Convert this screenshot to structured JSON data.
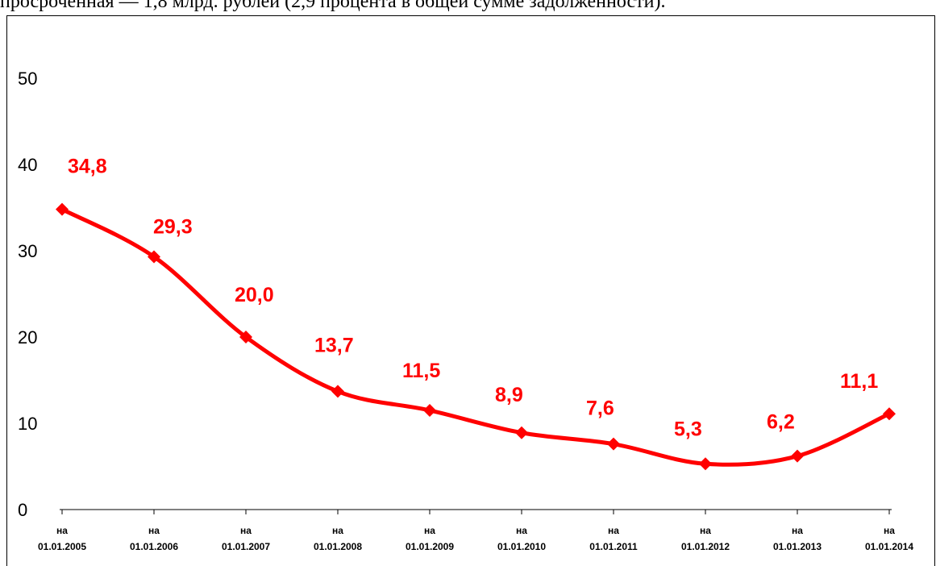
{
  "header_text": "просроченная — 1,8 млрд. рублей (2,9 процента в общей сумме задолженности).",
  "chart_data": {
    "type": "line",
    "title": "",
    "xlabel": "",
    "ylabel": "",
    "ylim": [
      0,
      50
    ],
    "yticks": [
      "0",
      "10",
      "20",
      "30",
      "40",
      "50"
    ],
    "categories": [
      [
        "на",
        "01.01.2005"
      ],
      [
        "на",
        "01.01.2006"
      ],
      [
        "на",
        "01.01.2007"
      ],
      [
        "на",
        "01.01.2008"
      ],
      [
        "на",
        "01.01.2009"
      ],
      [
        "на",
        "01.01.2010"
      ],
      [
        "на",
        "01.01.2011"
      ],
      [
        "на",
        "01.01.2012"
      ],
      [
        "на",
        "01.01.2013"
      ],
      [
        "на",
        "01.01.2014"
      ]
    ],
    "series": [
      {
        "values": [
          34.8,
          29.3,
          20.0,
          13.7,
          11.5,
          8.9,
          7.6,
          5.3,
          6.2,
          11.1
        ],
        "labels": [
          "34,8",
          "29,3",
          "20,0",
          "13,7",
          "11,5",
          "8,9",
          "7,6",
          "5,3",
          "6,2",
          "11,1"
        ],
        "color": "#ff0000"
      }
    ],
    "grid": false,
    "legend": "none"
  }
}
